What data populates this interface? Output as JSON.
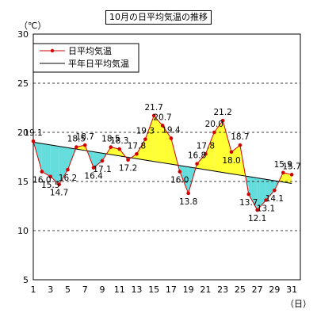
{
  "chart_data": {
    "type": "line",
    "title": "10月の日平均気温の推移",
    "ylabel": "（℃）",
    "xlabel": "（日）",
    "ylim": [
      5,
      30
    ],
    "yticks": [
      5,
      10,
      15,
      20,
      25,
      30
    ],
    "xticks": [
      1,
      3,
      5,
      7,
      9,
      11,
      13,
      15,
      17,
      19,
      21,
      23,
      25,
      27,
      29,
      31
    ],
    "grid": "horizontal-dashed",
    "legend_position": "top-left",
    "x": [
      1,
      2,
      3,
      4,
      5,
      6,
      7,
      8,
      9,
      10,
      11,
      12,
      13,
      14,
      15,
      16,
      17,
      18,
      19,
      20,
      21,
      22,
      23,
      24,
      25,
      26,
      27,
      28,
      29,
      30,
      31
    ],
    "series": [
      {
        "name": "日平均気温",
        "color": "#d40000",
        "marker": "dot",
        "values": [
          19.1,
          16.0,
          15.5,
          14.7,
          16.2,
          18.5,
          18.7,
          16.4,
          17.1,
          18.5,
          18.3,
          17.2,
          17.8,
          19.3,
          21.7,
          20.7,
          19.4,
          16.0,
          13.8,
          16.8,
          17.8,
          20.0,
          21.2,
          18.0,
          18.7,
          13.7,
          12.1,
          13.1,
          14.1,
          15.9,
          15.7
        ],
        "data_labels": [
          "19.1",
          "16.0",
          "15.5",
          "14.7",
          "16.2",
          "18.5",
          "18.7",
          "16.4",
          "17.1",
          "18.5",
          "18.3",
          "17.2",
          "17.8",
          "19.3",
          "21.7",
          "20.7",
          "19.4",
          "16.0",
          "13.8",
          "16.8",
          "17.8",
          "20.0",
          "21.2",
          "18.0",
          "18.7",
          "13.7",
          "12.1",
          "13.1",
          "14.1",
          "15.9",
          "15.7"
        ]
      },
      {
        "name": "平年日平均気温",
        "color": "#000000",
        "values": [
          19.0,
          18.86,
          18.72,
          18.58,
          18.44,
          18.3,
          18.16,
          18.02,
          17.88,
          17.74,
          17.6,
          17.46,
          17.32,
          17.18,
          17.04,
          16.9,
          16.76,
          16.62,
          16.48,
          16.34,
          16.2,
          16.06,
          15.92,
          15.78,
          15.64,
          15.5,
          15.36,
          15.22,
          15.08,
          14.94,
          14.8
        ]
      }
    ],
    "fill_above_color": "#ffff33",
    "fill_below_color": "#66dddd"
  }
}
